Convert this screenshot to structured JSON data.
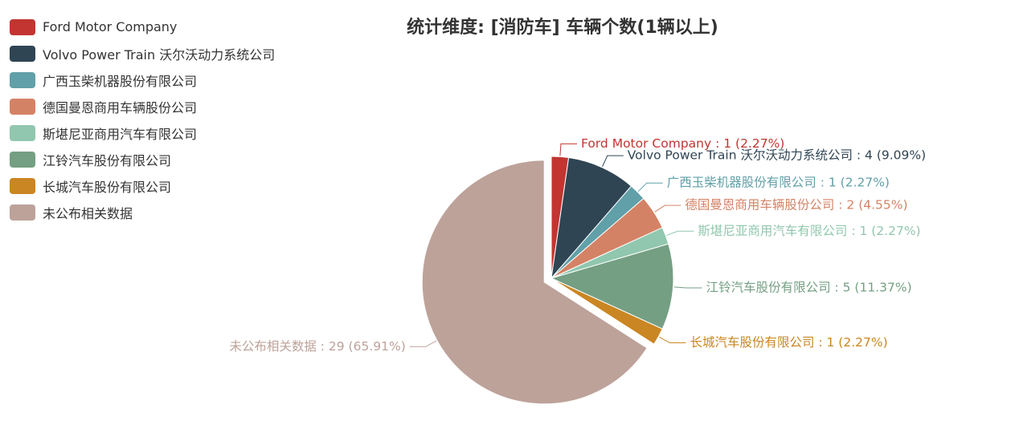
{
  "chart_data": {
    "type": "pie",
    "title": "统计维度: [消防车] 车辆个数(1辆以上)",
    "legend_position": "top-left",
    "slices": [
      {
        "name": "Ford Motor Company",
        "value": 1,
        "percent": "2.27%",
        "color": "#c23531",
        "selected": false
      },
      {
        "name": "Volvo Power Train 沃尔沃动力系统公司",
        "value": 4,
        "percent": "9.09%",
        "color": "#2f4554",
        "selected": false
      },
      {
        "name": "广西玉柴机器股份有限公司",
        "value": 1,
        "percent": "2.27%",
        "color": "#61a0a8",
        "selected": false
      },
      {
        "name": "德国曼恩商用车辆股份公司",
        "value": 2,
        "percent": "4.55%",
        "color": "#d48265",
        "selected": false
      },
      {
        "name": "斯堪尼亚商用汽车有限公司",
        "value": 1,
        "percent": "2.27%",
        "color": "#91c7ae",
        "selected": false
      },
      {
        "name": "江铃汽车股份有限公司",
        "value": 5,
        "percent": "11.37%",
        "color": "#749f83",
        "selected": false
      },
      {
        "name": "长城汽车股份有限公司",
        "value": 1,
        "percent": "2.27%",
        "color": "#ca8622",
        "selected": false
      },
      {
        "name": "未公布相关数据",
        "value": 29,
        "percent": "65.91%",
        "color": "#bda29a",
        "selected": true
      }
    ]
  }
}
